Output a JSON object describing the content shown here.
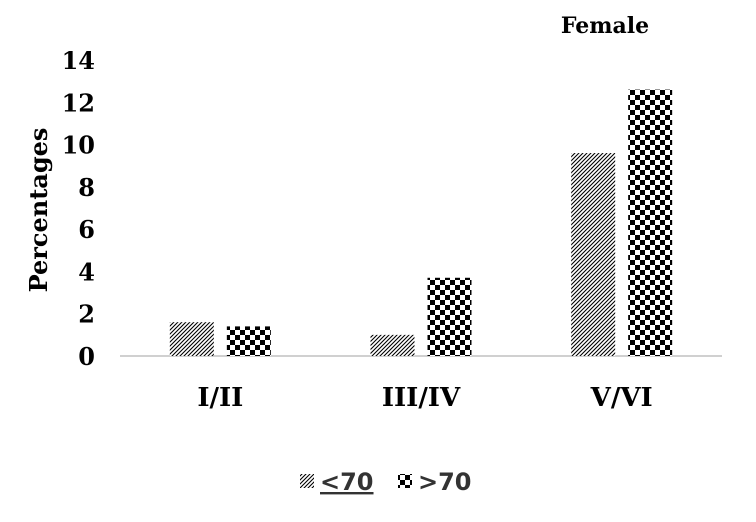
{
  "chart_data": {
    "type": "bar",
    "title": "Female",
    "ylabel": "Percentages",
    "xlabel": "",
    "categories": [
      "I/II",
      "III/IV",
      "V/VI"
    ],
    "series": [
      {
        "name": "<70",
        "values": [
          1.6,
          1.0,
          9.6
        ],
        "pattern": "diagonal-hatch",
        "color": "#000000"
      },
      {
        "name": ">70",
        "values": [
          1.4,
          3.7,
          12.6
        ],
        "pattern": "checkerboard",
        "color": "#000000"
      }
    ],
    "ylim": [
      0,
      14
    ],
    "yticks": [
      0,
      2,
      4,
      6,
      8,
      10,
      12,
      14
    ],
    "grid": false,
    "legend_position": "bottom",
    "axis_color": "#d0d0d0"
  }
}
